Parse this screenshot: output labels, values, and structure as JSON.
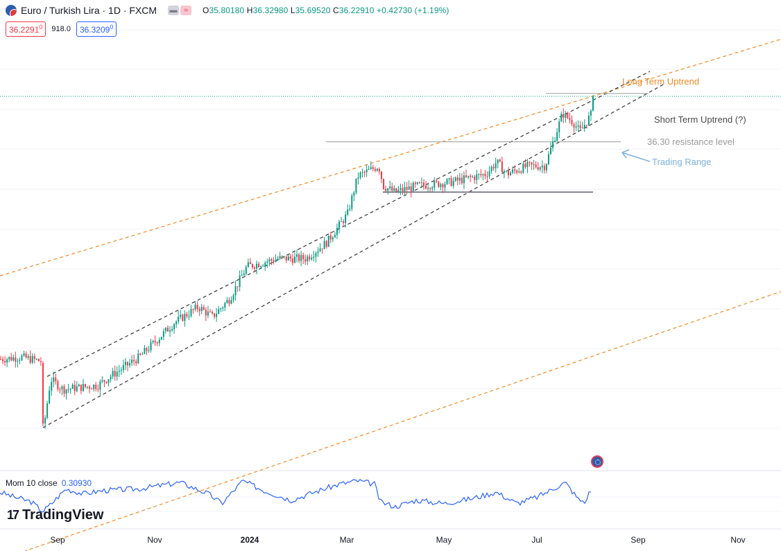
{
  "header": {
    "title": "Euro / Turkish Lira · 1D · FXCM",
    "ohlc": {
      "o_label": "O",
      "o": "35.80180",
      "h_label": "H",
      "h": "36.32980",
      "l_label": "L",
      "l": "35.69520",
      "c_label": "C",
      "c": "36.22910",
      "change": "+0.42730 (+1.19%)"
    }
  },
  "quote": {
    "bid": "36.2291",
    "bid_sup": "0",
    "spread": "918.0",
    "ask": "36.3209",
    "ask_sup": "0"
  },
  "annotations": {
    "long_term": "Long Term Uptrend",
    "short_term": "Short Term Uptrend (?)",
    "resistance": "36.30 resistance level",
    "trading_range": "Trading Range"
  },
  "indicator": {
    "label": "Mom 10 close",
    "value": "0.30930"
  },
  "brand": {
    "name": "TradingView",
    "logo": "17"
  },
  "colors": {
    "up": "#089981",
    "down": "#f23645",
    "long_trend": "#f08a24",
    "mom": "#2962ff"
  },
  "chart_data": {
    "type": "candlestick",
    "symbol": "EURTRY",
    "timeframe": "1D",
    "x_tick_labels": [
      "Sep",
      "Nov",
      "2024",
      "Mar",
      "May",
      "Jul",
      "Sep",
      "Nov"
    ],
    "x_ticks_bold": [
      false,
      false,
      true,
      false,
      false,
      false,
      false,
      false
    ],
    "price_range": [
      27.0,
      37.9
    ],
    "close_path": [
      {
        "t": 0,
        "v": 29.7
      },
      {
        "t": 30,
        "v": 29.75
      },
      {
        "t": 58,
        "v": 29.65
      },
      {
        "t": 62,
        "v": 28.0
      },
      {
        "t": 72,
        "v": 29.2
      },
      {
        "t": 90,
        "v": 28.95
      },
      {
        "t": 140,
        "v": 29.05
      },
      {
        "t": 160,
        "v": 29.3
      },
      {
        "t": 200,
        "v": 29.75
      },
      {
        "t": 250,
        "v": 30.6
      },
      {
        "t": 285,
        "v": 31.0
      },
      {
        "t": 305,
        "v": 30.75
      },
      {
        "t": 330,
        "v": 31.2
      },
      {
        "t": 355,
        "v": 32.0
      },
      {
        "t": 400,
        "v": 32.2
      },
      {
        "t": 440,
        "v": 32.2
      },
      {
        "t": 470,
        "v": 32.6
      },
      {
        "t": 500,
        "v": 33.3
      },
      {
        "t": 515,
        "v": 34.25
      },
      {
        "t": 545,
        "v": 34.5
      },
      {
        "t": 552,
        "v": 34.0
      },
      {
        "t": 568,
        "v": 33.85
      },
      {
        "t": 600,
        "v": 34.0
      },
      {
        "t": 650,
        "v": 34.1
      },
      {
        "t": 700,
        "v": 34.3
      },
      {
        "t": 715,
        "v": 34.6
      },
      {
        "t": 730,
        "v": 34.3
      },
      {
        "t": 760,
        "v": 34.5
      },
      {
        "t": 785,
        "v": 34.5
      },
      {
        "t": 810,
        "v": 35.8
      },
      {
        "t": 825,
        "v": 35.6
      },
      {
        "t": 835,
        "v": 35.35
      },
      {
        "t": 852,
        "v": 35.8
      },
      {
        "t": 855,
        "v": 36.2291
      }
    ],
    "drawings": [
      {
        "kind": "trend_line",
        "name": "long-term-upper",
        "color": "#f08a24",
        "style": "dashed",
        "points": [
          [
            0,
            31.77
          ],
          [
            1126,
            37.65
          ]
        ]
      },
      {
        "kind": "trend_line",
        "name": "long-term-lower",
        "color": "#f08a24",
        "style": "dashed",
        "points": [
          [
            0,
            24.72
          ],
          [
            1126,
            31.38
          ]
        ]
      },
      {
        "kind": "trend_line",
        "name": "short-term-upper",
        "color": "#333333",
        "style": "dashed",
        "points": [
          [
            68,
            29.27
          ],
          [
            937,
            36.85
          ]
        ]
      },
      {
        "kind": "trend_line",
        "name": "short-term-lower",
        "color": "#333333",
        "style": "dashed",
        "points": [
          [
            62,
            28.0
          ],
          [
            957,
            36.53
          ]
        ]
      },
      {
        "kind": "horizontal",
        "name": "resistance-36.30",
        "color": "#9a9a9a",
        "style": "solid",
        "value": 36.3
      },
      {
        "kind": "horizontal",
        "name": "range-top",
        "color": "#9a9a9a",
        "style": "solid",
        "value": 35.1
      },
      {
        "kind": "horizontal",
        "name": "range-bottom",
        "color": "#787b86",
        "style": "solid",
        "value": 33.85
      }
    ],
    "current_price_line": 36.2291,
    "momentum": {
      "label": "Mom 10 close",
      "last": 0.3093,
      "range": [
        -1.5,
        1.5
      ],
      "path": [
        {
          "t": 0,
          "v": 0.3
        },
        {
          "t": 20,
          "v": 0.0
        },
        {
          "t": 45,
          "v": -0.3
        },
        {
          "t": 62,
          "v": -0.9
        },
        {
          "t": 72,
          "v": -0.5
        },
        {
          "t": 95,
          "v": 0.5
        },
        {
          "t": 120,
          "v": 0.2
        },
        {
          "t": 150,
          "v": 0.4
        },
        {
          "t": 200,
          "v": 0.5
        },
        {
          "t": 260,
          "v": 0.9
        },
        {
          "t": 300,
          "v": 0.2
        },
        {
          "t": 320,
          "v": -0.4
        },
        {
          "t": 350,
          "v": 1.0
        },
        {
          "t": 380,
          "v": 0.4
        },
        {
          "t": 420,
          "v": -0.2
        },
        {
          "t": 460,
          "v": 0.4
        },
        {
          "t": 490,
          "v": 0.8
        },
        {
          "t": 515,
          "v": 1.0
        },
        {
          "t": 540,
          "v": 0.8
        },
        {
          "t": 548,
          "v": -0.3
        },
        {
          "t": 570,
          "v": -0.6
        },
        {
          "t": 600,
          "v": -0.2
        },
        {
          "t": 640,
          "v": -0.4
        },
        {
          "t": 680,
          "v": -0.1
        },
        {
          "t": 715,
          "v": 0.3
        },
        {
          "t": 745,
          "v": -0.4
        },
        {
          "t": 775,
          "v": 0.0
        },
        {
          "t": 815,
          "v": 0.9
        },
        {
          "t": 835,
          "v": -0.2
        },
        {
          "t": 848,
          "v": -0.3
        },
        {
          "t": 852,
          "v": 0.3093
        }
      ]
    }
  }
}
